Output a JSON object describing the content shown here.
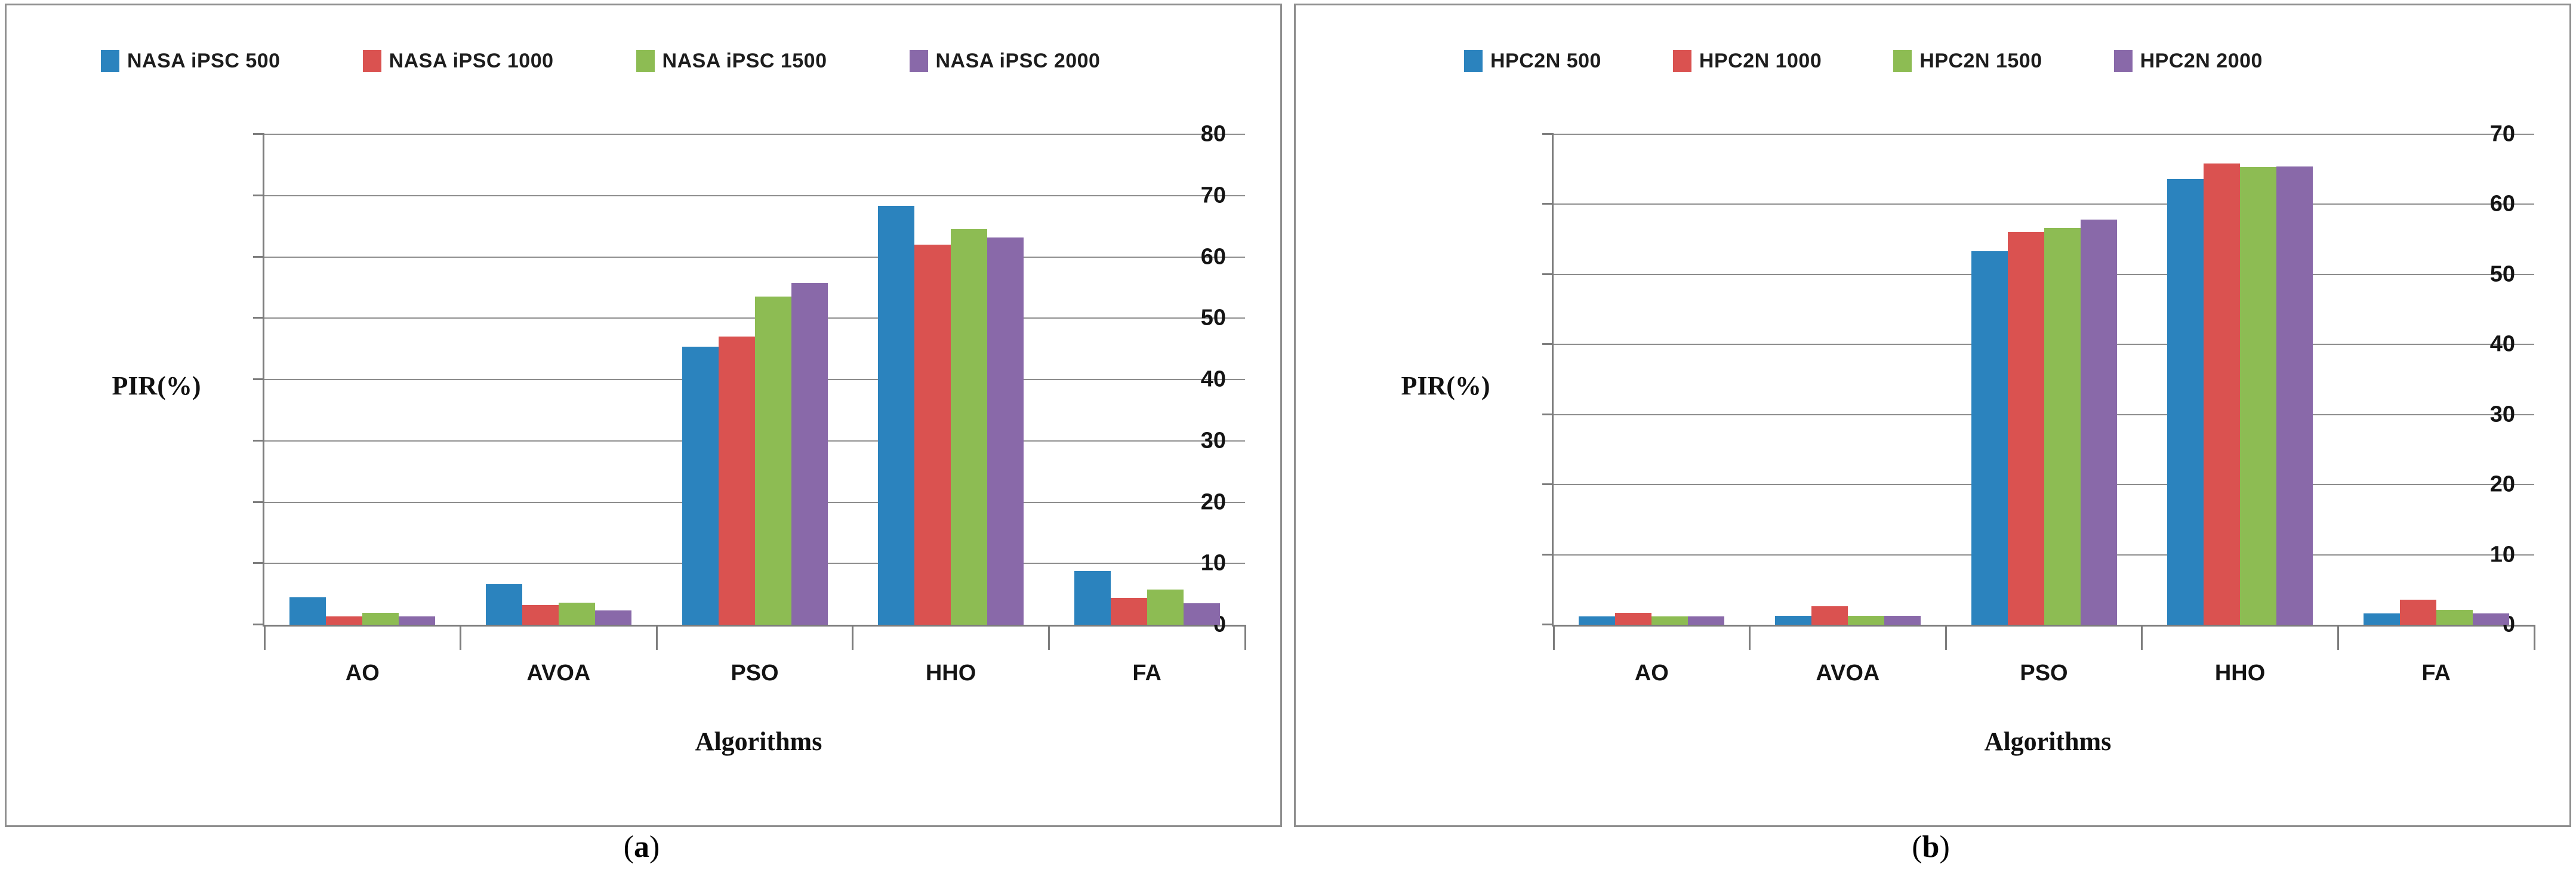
{
  "figure": {
    "captions": [
      {
        "open": "(",
        "letter": "a",
        "close": ")"
      },
      {
        "open": "(",
        "letter": "b",
        "close": ")"
      }
    ]
  },
  "colors": {
    "series_blue": "#2b83be",
    "series_red": "#da5250",
    "series_green": "#8dbc53",
    "series_purple": "#8969a9",
    "gridline": "#8e8e8e",
    "axis": "#7d7d7d",
    "panel_border": "#8f8f8f"
  },
  "chart_data": [
    {
      "type": "bar",
      "title": "",
      "categories": [
        "AO",
        "AVOA",
        "PSO",
        "HHO",
        "FA"
      ],
      "series": [
        {
          "name": "NASA iPSC 500",
          "color": "#2b83be",
          "values": [
            4.5,
            6.6,
            45.4,
            68.3,
            8.8
          ]
        },
        {
          "name": "NASA iPSC 1000",
          "color": "#da5250",
          "values": [
            1.4,
            3.2,
            47.0,
            62.0,
            4.4
          ]
        },
        {
          "name": "NASA iPSC 1500",
          "color": "#8dbc53",
          "values": [
            1.9,
            3.6,
            53.5,
            64.5,
            5.7
          ]
        },
        {
          "name": "NASA iPSC 2000",
          "color": "#8969a9",
          "values": [
            1.4,
            2.3,
            55.8,
            63.2,
            3.5
          ]
        }
      ],
      "xlabel": "Algorithms",
      "ylabel": "PIR(%)",
      "ylim": [
        0,
        80
      ],
      "ytick_step": 10,
      "grid": true,
      "legend_position": "top"
    },
    {
      "type": "bar",
      "title": "",
      "categories": [
        "AO",
        "AVOA",
        "PSO",
        "HHO",
        "FA"
      ],
      "series": [
        {
          "name": "HPC2N 500",
          "color": "#2b83be",
          "values": [
            1.2,
            1.3,
            53.3,
            63.6,
            1.6
          ]
        },
        {
          "name": "HPC2N 1000",
          "color": "#da5250",
          "values": [
            1.7,
            2.6,
            56.0,
            65.8,
            3.6
          ]
        },
        {
          "name": "HPC2N 1500",
          "color": "#8dbc53",
          "values": [
            1.2,
            1.3,
            56.6,
            65.3,
            2.1
          ]
        },
        {
          "name": "HPC2N 2000",
          "color": "#8969a9",
          "values": [
            1.2,
            1.3,
            57.8,
            65.4,
            1.6
          ]
        }
      ],
      "xlabel": "Algorithms",
      "ylabel": "PIR(%)",
      "ylim": [
        0,
        70
      ],
      "ytick_step": 10,
      "grid": true,
      "legend_position": "top"
    }
  ]
}
